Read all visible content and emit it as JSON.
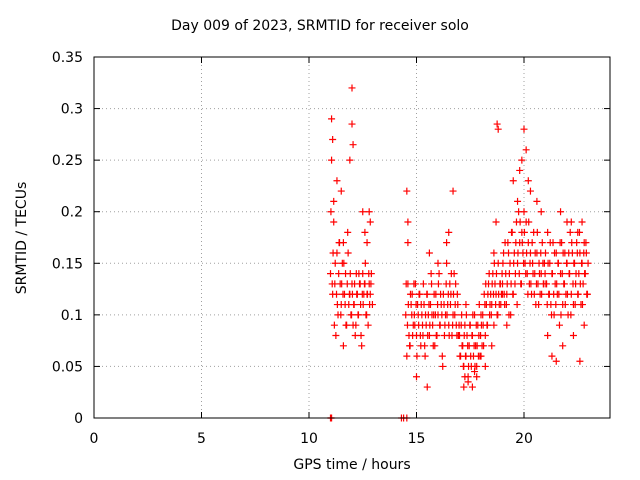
{
  "chart_data": {
    "type": "scatter",
    "title": "Day 009 of 2023, SRMTID for receiver solo",
    "xlabel": "GPS time / hours",
    "ylabel": "SRMTID / TECUs",
    "xlim": [
      0,
      24
    ],
    "ylim": [
      0,
      0.35
    ],
    "xticks": [
      0,
      5,
      10,
      15,
      20
    ],
    "yticks": [
      0,
      0.05,
      0.1,
      0.15,
      0.2,
      0.25,
      0.3,
      0.35
    ],
    "xtick_labels": [
      "0",
      "5",
      "10",
      "15",
      "20"
    ],
    "ytick_labels": [
      "0",
      "0.05",
      "0.1",
      "0.15",
      "0.2",
      "0.25",
      "0.3",
      "0.35"
    ],
    "grid": true,
    "marker": "+",
    "series_color": "#ff0000",
    "series": [
      {
        "x": [
          11.0,
          11.05,
          11.1,
          11.15,
          11.2,
          11.25,
          11.3,
          11.35,
          11.4,
          11.45,
          11.5,
          11.55,
          11.6,
          11.65,
          11.7,
          11.75,
          11.8,
          11.85,
          11.9,
          11.95,
          12.0,
          12.05,
          12.1,
          12.15,
          12.2,
          12.25,
          12.3,
          12.35,
          12.4,
          12.45,
          12.5,
          12.55,
          12.6,
          12.65,
          12.7,
          12.75,
          12.8,
          12.85,
          12.9,
          12.95,
          11.02,
          11.08,
          11.12,
          11.18,
          11.22,
          11.28,
          11.32,
          11.38,
          11.42,
          11.48,
          11.52,
          11.58,
          11.62,
          11.68,
          11.72,
          11.78,
          11.82,
          11.88,
          11.92,
          11.98,
          12.02,
          12.08,
          12.12,
          12.18,
          12.22,
          12.28,
          12.32,
          12.38,
          12.42,
          12.48,
          12.52,
          12.58,
          12.62,
          12.68,
          12.72,
          12.78,
          12.82,
          12.88,
          11.05,
          11.1,
          11.15,
          11.3,
          11.5,
          11.6,
          11.9,
          12.0,
          12.0,
          12.05,
          12.5,
          12.6,
          12.7,
          12.8,
          12.85,
          14.5,
          14.55,
          14.6,
          14.65,
          14.7,
          14.75,
          14.8,
          14.85,
          14.9,
          14.95,
          15.0,
          15.05,
          15.1,
          15.15,
          15.2,
          15.25,
          15.3,
          15.35,
          15.4,
          15.45,
          15.5,
          15.55,
          15.6,
          15.65,
          15.7,
          15.75,
          15.8,
          15.85,
          15.9,
          15.95,
          16.0,
          16.05,
          16.1,
          16.15,
          16.2,
          16.25,
          16.3,
          16.35,
          16.4,
          16.45,
          16.5,
          16.55,
          16.6,
          16.65,
          16.7,
          16.75,
          16.8,
          16.85,
          16.9,
          16.95,
          14.52,
          14.58,
          14.62,
          14.68,
          14.72,
          14.78,
          14.82,
          14.88,
          14.92,
          14.98,
          15.02,
          15.08,
          15.12,
          15.18,
          15.22,
          15.28,
          15.32,
          15.38,
          15.42,
          15.48,
          15.52,
          15.58,
          15.62,
          15.68,
          15.72,
          15.78,
          15.82,
          15.88,
          15.92,
          15.98,
          16.02,
          16.08,
          16.12,
          16.18,
          16.22,
          16.28,
          16.32,
          16.38,
          16.42,
          16.48,
          16.52,
          16.58,
          16.62,
          16.68,
          16.72,
          16.78,
          16.82,
          16.88,
          16.92,
          16.98,
          14.55,
          14.6,
          14.6,
          15.0,
          15.5,
          15.6,
          16.0,
          16.4,
          16.5,
          16.7,
          17.0,
          17.05,
          17.1,
          17.15,
          17.2,
          17.25,
          17.3,
          17.35,
          17.4,
          17.45,
          17.5,
          17.55,
          17.6,
          17.65,
          17.7,
          17.75,
          17.8,
          17.85,
          17.9,
          17.95,
          18.0,
          18.05,
          18.1,
          18.15,
          18.2,
          18.25,
          18.3,
          18.35,
          18.4,
          18.45,
          18.5,
          18.55,
          18.6,
          18.65,
          18.7,
          18.75,
          18.8,
          18.85,
          18.9,
          18.95,
          17.02,
          17.08,
          17.12,
          17.18,
          17.22,
          17.28,
          17.32,
          17.38,
          17.42,
          17.48,
          17.52,
          17.58,
          17.62,
          17.68,
          17.72,
          17.78,
          17.82,
          17.88,
          17.92,
          17.98,
          18.02,
          18.08,
          18.12,
          18.18,
          18.22,
          18.28,
          18.32,
          18.38,
          18.42,
          18.48,
          18.52,
          18.58,
          18.62,
          18.68,
          18.72,
          18.78,
          18.82,
          18.88,
          18.92,
          18.98,
          17.2,
          17.25,
          17.3,
          17.4,
          17.6,
          17.7,
          17.8,
          18.0,
          18.2,
          18.5,
          18.6,
          18.7,
          18.75,
          18.8,
          19.0,
          19.05,
          19.1,
          19.15,
          19.2,
          19.25,
          19.3,
          19.35,
          19.4,
          19.45,
          19.5,
          19.55,
          19.6,
          19.65,
          19.7,
          19.75,
          19.8,
          19.85,
          19.9,
          19.95,
          20.0,
          20.05,
          20.1,
          20.15,
          20.2,
          20.25,
          20.3,
          20.35,
          20.4,
          20.45,
          20.5,
          20.55,
          20.6,
          20.65,
          20.7,
          20.75,
          20.8,
          20.85,
          20.9,
          20.95,
          19.02,
          19.08,
          19.12,
          19.18,
          19.22,
          19.28,
          19.32,
          19.38,
          19.42,
          19.48,
          19.52,
          19.58,
          19.62,
          19.68,
          19.72,
          19.78,
          19.82,
          19.88,
          19.92,
          19.98,
          20.02,
          20.08,
          20.12,
          20.18,
          20.22,
          20.28,
          20.32,
          20.38,
          20.42,
          20.48,
          20.52,
          20.58,
          20.62,
          20.68,
          20.72,
          20.78,
          20.82,
          20.88,
          20.92,
          20.98,
          19.0,
          19.2,
          19.5,
          19.7,
          19.8,
          19.9,
          20.0,
          20.1,
          20.2,
          20.3,
          20.6,
          20.8,
          21.0,
          21.05,
          21.1,
          21.15,
          21.2,
          21.25,
          21.3,
          21.35,
          21.4,
          21.45,
          21.5,
          21.55,
          21.6,
          21.65,
          21.7,
          21.75,
          21.8,
          21.85,
          21.9,
          21.95,
          22.0,
          22.05,
          22.1,
          22.15,
          22.2,
          22.25,
          22.3,
          22.35,
          22.4,
          22.45,
          22.5,
          22.55,
          22.6,
          22.65,
          22.7,
          22.75,
          22.8,
          22.85,
          22.9,
          22.95,
          21.02,
          21.08,
          21.12,
          21.18,
          21.22,
          21.28,
          21.32,
          21.38,
          21.42,
          21.48,
          21.52,
          21.58,
          21.62,
          21.68,
          21.72,
          21.78,
          21.82,
          21.88,
          21.92,
          21.98,
          22.02,
          22.08,
          22.12,
          22.18,
          22.22,
          22.28,
          22.32,
          22.38,
          22.42,
          22.48,
          22.52,
          22.58,
          22.62,
          22.68,
          22.72,
          22.78,
          22.82,
          22.88,
          22.92,
          22.98,
          21.1,
          21.3,
          21.5,
          21.7,
          21.8,
          22.0,
          22.2,
          22.3,
          22.5,
          22.6,
          22.7,
          22.8,
          11.0,
          11.05,
          14.3,
          14.4,
          14.55
        ],
        "y": [
          0.14,
          0.25,
          0.12,
          0.19,
          0.13,
          0.08,
          0.16,
          0.1,
          0.17,
          0.13,
          0.11,
          0.15,
          0.07,
          0.12,
          0.14,
          0.09,
          0.18,
          0.11,
          0.12,
          0.1,
          0.13,
          0.09,
          0.11,
          0.08,
          0.14,
          0.12,
          0.1,
          0.13,
          0.11,
          0.07,
          0.14,
          0.12,
          0.13,
          0.1,
          0.12,
          0.09,
          0.13,
          0.12,
          0.14,
          0.11,
          0.2,
          0.13,
          0.16,
          0.09,
          0.15,
          0.12,
          0.11,
          0.14,
          0.17,
          0.1,
          0.13,
          0.12,
          0.15,
          0.11,
          0.09,
          0.13,
          0.16,
          0.12,
          0.14,
          0.1,
          0.12,
          0.11,
          0.13,
          0.09,
          0.12,
          0.1,
          0.14,
          0.13,
          0.08,
          0.12,
          0.11,
          0.13,
          0.15,
          0.1,
          0.12,
          0.14,
          0.11,
          0.13,
          0.29,
          0.27,
          0.21,
          0.23,
          0.22,
          0.17,
          0.25,
          0.32,
          0.285,
          0.265,
          0.2,
          0.18,
          0.17,
          0.2,
          0.19,
          0.1,
          0.06,
          0.13,
          0.08,
          0.07,
          0.11,
          0.12,
          0.09,
          0.1,
          0.13,
          0.08,
          0.11,
          0.09,
          0.12,
          0.07,
          0.1,
          0.08,
          0.11,
          0.06,
          0.09,
          0.12,
          0.1,
          0.08,
          0.11,
          0.13,
          0.09,
          0.1,
          0.07,
          0.12,
          0.08,
          0.1,
          0.14,
          0.09,
          0.11,
          0.06,
          0.12,
          0.08,
          0.1,
          0.15,
          0.11,
          0.09,
          0.13,
          0.12,
          0.08,
          0.1,
          0.14,
          0.11,
          0.09,
          0.12,
          0.08,
          0.13,
          0.09,
          0.11,
          0.07,
          0.12,
          0.1,
          0.08,
          0.13,
          0.09,
          0.11,
          0.06,
          0.1,
          0.12,
          0.08,
          0.11,
          0.09,
          0.13,
          0.07,
          0.1,
          0.12,
          0.08,
          0.11,
          0.09,
          0.14,
          0.1,
          0.07,
          0.12,
          0.1,
          0.08,
          0.11,
          0.13,
          0.09,
          0.12,
          0.1,
          0.05,
          0.11,
          0.09,
          0.13,
          0.1,
          0.12,
          0.08,
          0.11,
          0.14,
          0.09,
          0.12,
          0.1,
          0.13,
          0.08,
          0.11,
          0.09,
          0.22,
          0.19,
          0.17,
          0.04,
          0.03,
          0.16,
          0.15,
          0.17,
          0.18,
          0.22,
          0.08,
          0.06,
          0.1,
          0.07,
          0.05,
          0.09,
          0.06,
          0.08,
          0.04,
          0.07,
          0.09,
          0.05,
          0.08,
          0.06,
          0.1,
          0.07,
          0.05,
          0.09,
          0.08,
          0.06,
          0.1,
          0.07,
          0.09,
          0.12,
          0.08,
          0.11,
          0.09,
          0.13,
          0.1,
          0.12,
          0.11,
          0.14,
          0.09,
          0.13,
          0.12,
          0.1,
          0.15,
          0.11,
          0.13,
          0.12,
          0.06,
          0.09,
          0.07,
          0.05,
          0.08,
          0.06,
          0.1,
          0.07,
          0.05,
          0.09,
          0.06,
          0.08,
          0.1,
          0.07,
          0.05,
          0.09,
          0.07,
          0.06,
          0.11,
          0.08,
          0.09,
          0.1,
          0.07,
          0.11,
          0.13,
          0.09,
          0.12,
          0.14,
          0.11,
          0.1,
          0.13,
          0.12,
          0.15,
          0.11,
          0.14,
          0.1,
          0.12,
          0.13,
          0.11,
          0.14,
          0.03,
          0.04,
          0.11,
          0.035,
          0.03,
          0.045,
          0.04,
          0.06,
          0.05,
          0.07,
          0.16,
          0.19,
          0.285,
          0.28,
          0.13,
          0.16,
          0.11,
          0.14,
          0.12,
          0.17,
          0.1,
          0.15,
          0.13,
          0.18,
          0.12,
          0.16,
          0.14,
          0.19,
          0.15,
          0.2,
          0.17,
          0.13,
          0.18,
          0.16,
          0.2,
          0.15,
          0.19,
          0.14,
          0.17,
          0.13,
          0.16,
          0.12,
          0.15,
          0.18,
          0.14,
          0.11,
          0.16,
          0.13,
          0.15,
          0.12,
          0.14,
          0.17,
          0.13,
          0.15,
          0.15,
          0.12,
          0.17,
          0.11,
          0.13,
          0.16,
          0.14,
          0.1,
          0.18,
          0.12,
          0.15,
          0.13,
          0.17,
          0.11,
          0.16,
          0.14,
          0.19,
          0.13,
          0.17,
          0.15,
          0.18,
          0.14,
          0.16,
          0.12,
          0.19,
          0.15,
          0.13,
          0.17,
          0.14,
          0.12,
          0.16,
          0.13,
          0.18,
          0.11,
          0.14,
          0.16,
          0.12,
          0.15,
          0.13,
          0.14,
          0.12,
          0.09,
          0.23,
          0.21,
          0.24,
          0.25,
          0.28,
          0.26,
          0.23,
          0.22,
          0.21,
          0.2,
          0.16,
          0.13,
          0.18,
          0.12,
          0.15,
          0.11,
          0.14,
          0.17,
          0.1,
          0.13,
          0.16,
          0.12,
          0.15,
          0.09,
          0.14,
          0.17,
          0.11,
          0.13,
          0.16,
          0.12,
          0.15,
          0.1,
          0.14,
          0.18,
          0.12,
          0.16,
          0.11,
          0.15,
          0.13,
          0.17,
          0.12,
          0.14,
          0.16,
          0.11,
          0.15,
          0.13,
          0.17,
          0.14,
          0.16,
          0.12,
          0.13,
          0.11,
          0.15,
          0.12,
          0.17,
          0.1,
          0.14,
          0.12,
          0.16,
          0.11,
          0.13,
          0.15,
          0.12,
          0.17,
          0.1,
          0.14,
          0.16,
          0.13,
          0.11,
          0.15,
          0.12,
          0.16,
          0.14,
          0.1,
          0.17,
          0.13,
          0.15,
          0.11,
          0.14,
          0.16,
          0.12,
          0.18,
          0.13,
          0.15,
          0.11,
          0.16,
          0.14,
          0.17,
          0.12,
          0.15,
          0.08,
          0.06,
          0.055,
          0.2,
          0.07,
          0.19,
          0.19,
          0.08,
          0.18,
          0.055,
          0.19,
          0.09,
          0.0,
          0.0,
          0.0,
          0.0,
          0.0
        ]
      }
    ]
  }
}
